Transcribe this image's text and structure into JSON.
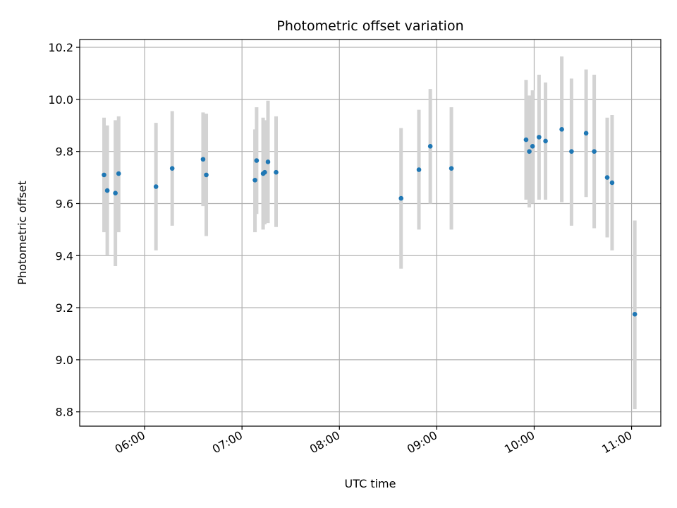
{
  "chart_data": {
    "type": "scatter",
    "title": "Photometric offset variation",
    "xlabel": "UTC time",
    "ylabel": "Photometric offset",
    "xlim": [
      "05:20",
      "11:18"
    ],
    "ylim": [
      8.745,
      10.23
    ],
    "x_ticks": [
      "06:00",
      "07:00",
      "08:00",
      "09:00",
      "10:00",
      "11:00"
    ],
    "y_ticks": [
      8.8,
      9.0,
      9.2,
      9.4,
      9.6,
      9.8,
      10.0,
      10.2
    ],
    "y_tick_labels": [
      "8.8",
      "9.0",
      "9.2",
      "9.4",
      "9.6",
      "9.8",
      "10.0",
      "10.2"
    ],
    "grid": true,
    "marker_color": "#1f77b4",
    "errorbar_color": "#d3d3d3",
    "points": [
      {
        "x": "05:35",
        "y": 9.71,
        "err_low": 9.49,
        "err_high": 9.93
      },
      {
        "x": "05:37",
        "y": 9.65,
        "err_low": 9.4,
        "err_high": 9.9
      },
      {
        "x": "05:42",
        "y": 9.64,
        "err_low": 9.36,
        "err_high": 9.92
      },
      {
        "x": "05:44",
        "y": 9.715,
        "err_low": 9.49,
        "err_high": 9.935
      },
      {
        "x": "06:07",
        "y": 9.665,
        "err_low": 9.42,
        "err_high": 9.91
      },
      {
        "x": "06:17",
        "y": 9.735,
        "err_low": 9.515,
        "err_high": 9.955
      },
      {
        "x": "06:36",
        "y": 9.77,
        "err_low": 9.59,
        "err_high": 9.95
      },
      {
        "x": "06:38",
        "y": 9.71,
        "err_low": 9.475,
        "err_high": 9.945
      },
      {
        "x": "07:08",
        "y": 9.69,
        "err_low": 9.49,
        "err_high": 9.885
      },
      {
        "x": "07:09",
        "y": 9.765,
        "err_low": 9.56,
        "err_high": 9.97
      },
      {
        "x": "07:13",
        "y": 9.715,
        "err_low": 9.5,
        "err_high": 9.93
      },
      {
        "x": "07:14",
        "y": 9.72,
        "err_low": 9.52,
        "err_high": 9.92
      },
      {
        "x": "07:16",
        "y": 9.76,
        "err_low": 9.525,
        "err_high": 9.995
      },
      {
        "x": "07:21",
        "y": 9.72,
        "err_low": 9.51,
        "err_high": 9.935
      },
      {
        "x": "08:38",
        "y": 9.62,
        "err_low": 9.35,
        "err_high": 9.89
      },
      {
        "x": "08:49",
        "y": 9.73,
        "err_low": 9.5,
        "err_high": 9.96
      },
      {
        "x": "08:56",
        "y": 9.82,
        "err_low": 9.6,
        "err_high": 10.04
      },
      {
        "x": "09:09",
        "y": 9.735,
        "err_low": 9.5,
        "err_high": 9.97
      },
      {
        "x": "09:55",
        "y": 9.845,
        "err_low": 9.615,
        "err_high": 10.075
      },
      {
        "x": "09:57",
        "y": 9.8,
        "err_low": 9.585,
        "err_high": 10.015
      },
      {
        "x": "09:59",
        "y": 9.82,
        "err_low": 9.6,
        "err_high": 10.035
      },
      {
        "x": "10:03",
        "y": 9.855,
        "err_low": 9.615,
        "err_high": 10.095
      },
      {
        "x": "10:07",
        "y": 9.84,
        "err_low": 9.615,
        "err_high": 10.065
      },
      {
        "x": "10:17",
        "y": 9.885,
        "err_low": 9.605,
        "err_high": 10.165
      },
      {
        "x": "10:23",
        "y": 9.8,
        "err_low": 9.515,
        "err_high": 10.08
      },
      {
        "x": "10:32",
        "y": 9.87,
        "err_low": 9.625,
        "err_high": 10.115
      },
      {
        "x": "10:37",
        "y": 9.8,
        "err_low": 9.505,
        "err_high": 10.095
      },
      {
        "x": "10:45",
        "y": 9.7,
        "err_low": 9.47,
        "err_high": 9.93
      },
      {
        "x": "10:48",
        "y": 9.68,
        "err_low": 9.42,
        "err_high": 9.94
      },
      {
        "x": "11:02",
        "y": 9.175,
        "err_low": 8.81,
        "err_high": 9.535
      }
    ]
  }
}
